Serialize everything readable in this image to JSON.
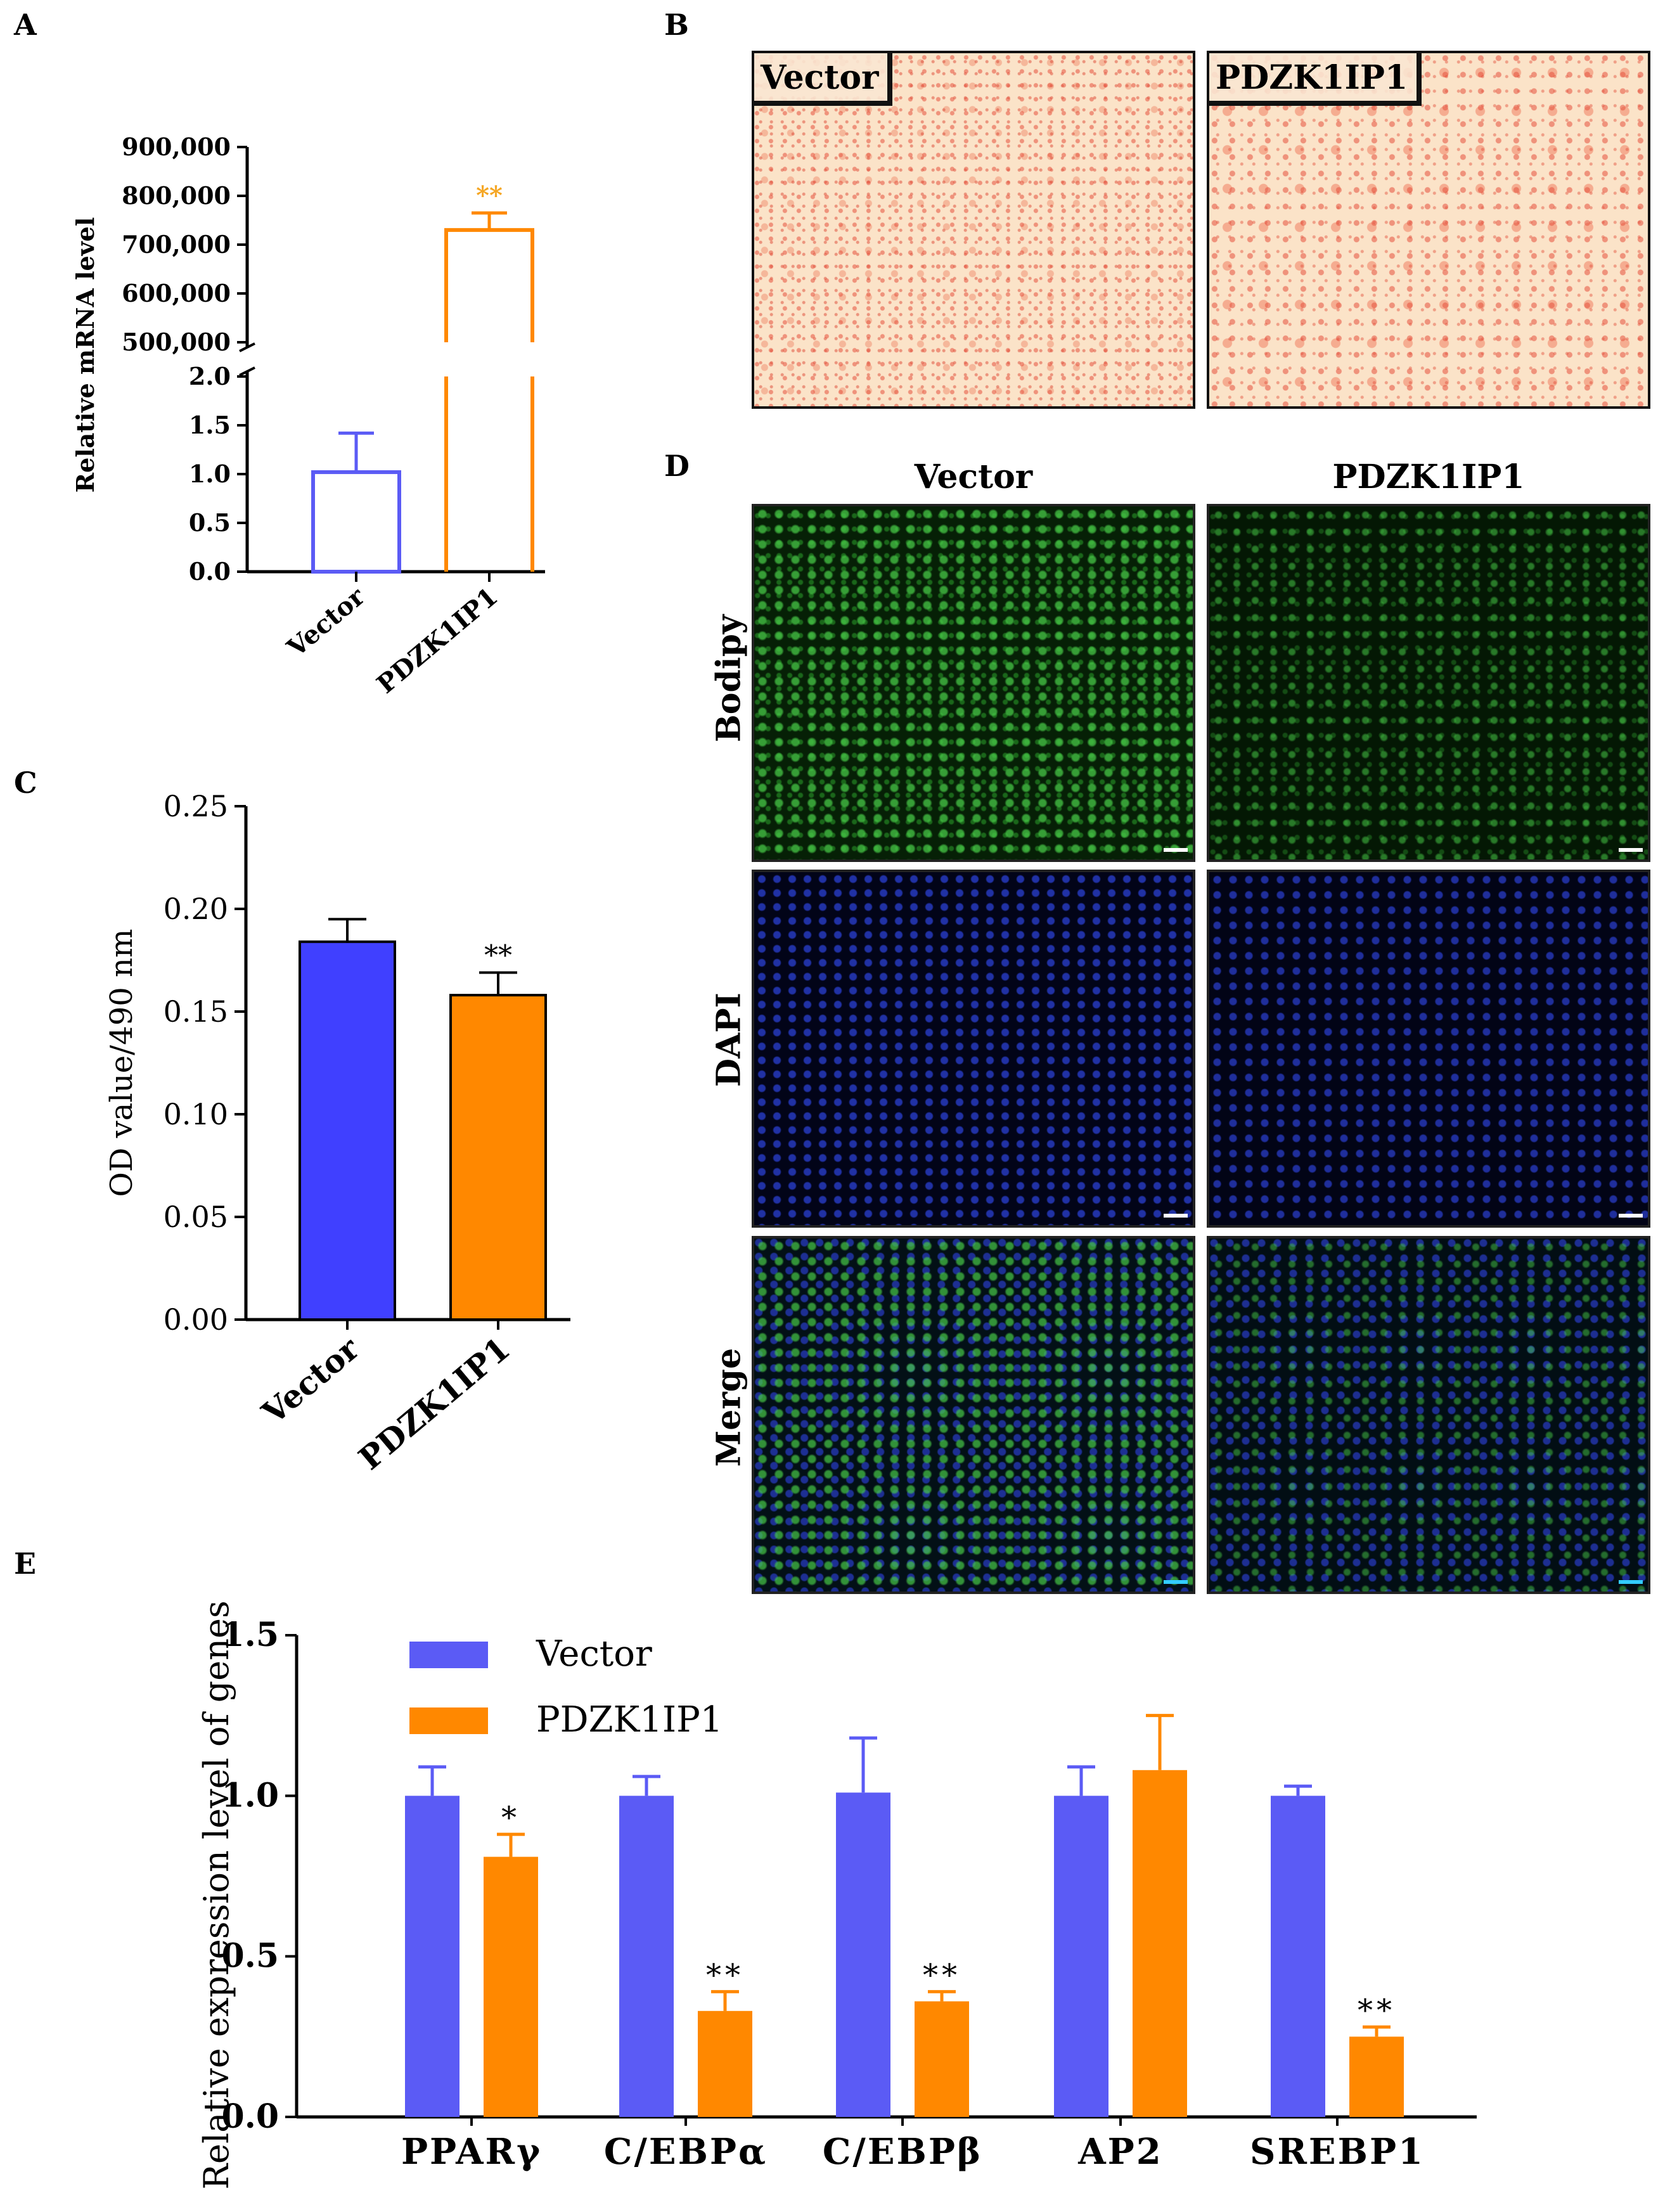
{
  "panels": {
    "a": "A",
    "b": "B",
    "c": "C",
    "d": "D",
    "e": "E"
  },
  "colors": {
    "blue": "#5b5bf5",
    "blue_fill": "#4040ff",
    "orange": "#ff8800",
    "orange_star": "#f5a623",
    "ink": "#000000"
  },
  "chart_data": [
    {
      "id": "A",
      "type": "bar",
      "style": "hollow",
      "broken_axis": true,
      "ylabel": "Relative mRNA level",
      "categories": [
        "Vector",
        "PDZK1IP1"
      ],
      "values": [
        1.02,
        730000
      ],
      "errors": [
        0.4,
        35000
      ],
      "lower_ylim": [
        0,
        2.0
      ],
      "lower_ticks": [
        "0.0",
        "0.5",
        "1.0",
        "1.5",
        "2.0"
      ],
      "upper_ylim": [
        500000,
        900000
      ],
      "upper_ticks": [
        "500,000",
        "600,000",
        "700,000",
        "800,000",
        "900,000"
      ],
      "annotations": [
        "",
        "**"
      ]
    },
    {
      "id": "C",
      "type": "bar",
      "ylabel": "OD value/490 nm",
      "categories": [
        "Vector",
        "PDZK1IP1"
      ],
      "values": [
        0.184,
        0.158
      ],
      "errors": [
        0.011,
        0.011
      ],
      "ylim": [
        0,
        0.25
      ],
      "ticks": [
        "0.00",
        "0.05",
        "0.10",
        "0.15",
        "0.20",
        "0.25"
      ],
      "annotations": [
        "",
        "**"
      ]
    },
    {
      "id": "E",
      "type": "bar",
      "ylabel": "Relative expression level of genes",
      "categories": [
        "PPARγ",
        "C/EBPα",
        "C/EBPβ",
        "AP2",
        "SREBP1"
      ],
      "series": [
        {
          "name": "Vector",
          "values": [
            1.0,
            1.0,
            1.01,
            1.0,
            1.0
          ],
          "errors": [
            0.09,
            0.06,
            0.17,
            0.09,
            0.03
          ]
        },
        {
          "name": "PDZK1IP1",
          "values": [
            0.81,
            0.33,
            0.36,
            1.08,
            0.25
          ],
          "errors": [
            0.07,
            0.06,
            0.03,
            0.17,
            0.03
          ]
        }
      ],
      "ylim": [
        0,
        1.5
      ],
      "ticks": [
        "0.0",
        "0.5",
        "1.0",
        "1.5"
      ],
      "annotations": [
        "*",
        "**",
        "**",
        "",
        "**"
      ],
      "legend": "top-left"
    }
  ],
  "panel_b": {
    "left_label": "Vector",
    "right_label": "PDZK1IP1"
  },
  "panel_d": {
    "col_labels": [
      "Vector",
      "PDZK1IP1"
    ],
    "row_labels": [
      "Bodipy",
      "DAPI",
      "Merge"
    ]
  }
}
